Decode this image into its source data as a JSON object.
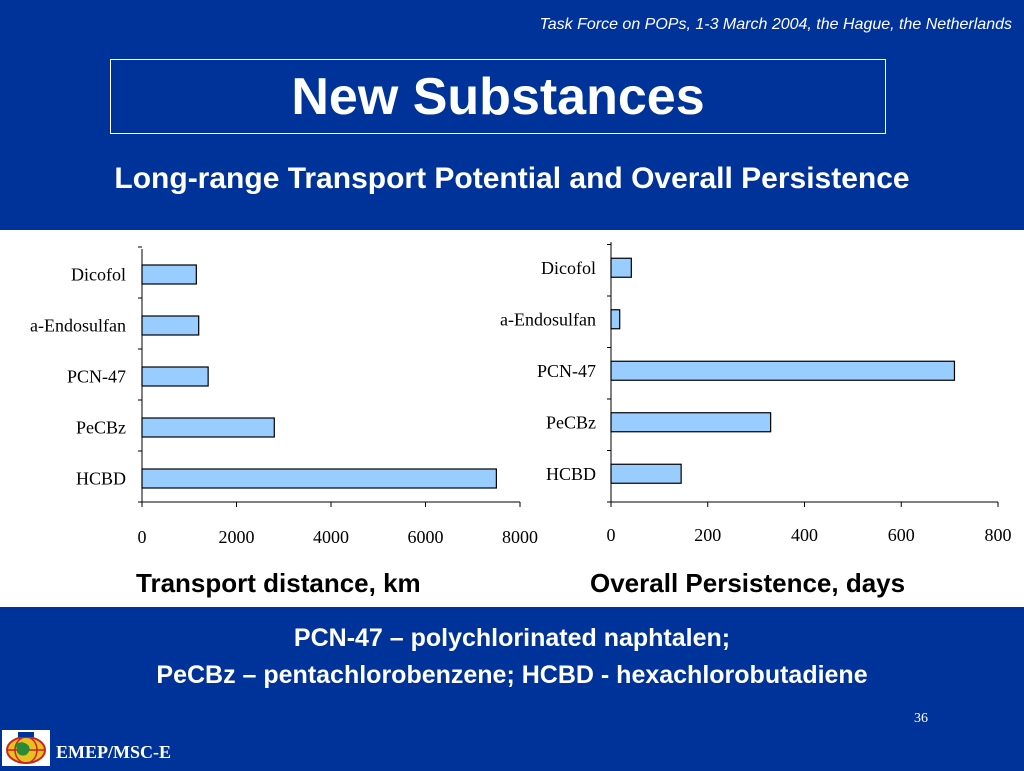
{
  "header": {
    "conference": "Task Force on POPs, 1-3 March 2004, the Hague, the Netherlands",
    "title": "New Substances",
    "subtitle": "Long-range  Transport Potential and Overall Persistence"
  },
  "axis_captions": {
    "left": "Transport distance, km",
    "right": "Overall Persistence, days"
  },
  "footer": {
    "line1": "PCN-47 – polychlorinated naphtalen;",
    "line2": "PeCBz – pentachlorobenzene; HCBD - hexachlorobutadiene",
    "page_number": "36",
    "org": "EMEP/MSC-E",
    "logo_icon": "msc-e-globe-logo-icon"
  },
  "colors": {
    "background": "#003399",
    "bar_fill": "#99ccff",
    "bar_stroke": "#000000"
  },
  "chart_data": [
    {
      "type": "bar",
      "orientation": "horizontal",
      "categories": [
        "Dicofol",
        "a-Endosulfan",
        "PCN-47",
        "PeCBz",
        "HCBD"
      ],
      "values": [
        1150,
        1200,
        1400,
        2800,
        7500
      ],
      "xlabel": "Transport distance, km",
      "xlim": [
        0,
        8000
      ],
      "xticks": [
        "0",
        "2000",
        "4000",
        "6000",
        "8000"
      ]
    },
    {
      "type": "bar",
      "orientation": "horizontal",
      "categories": [
        "Dicofol",
        "a-Endosulfan",
        "PCN-47",
        "PeCBz",
        "HCBD"
      ],
      "values": [
        42,
        18,
        710,
        330,
        145
      ],
      "xlabel": "Overall Persistence, days",
      "xlim": [
        0,
        800
      ],
      "xticks": [
        "0",
        "200",
        "400",
        "600",
        "800"
      ]
    }
  ]
}
